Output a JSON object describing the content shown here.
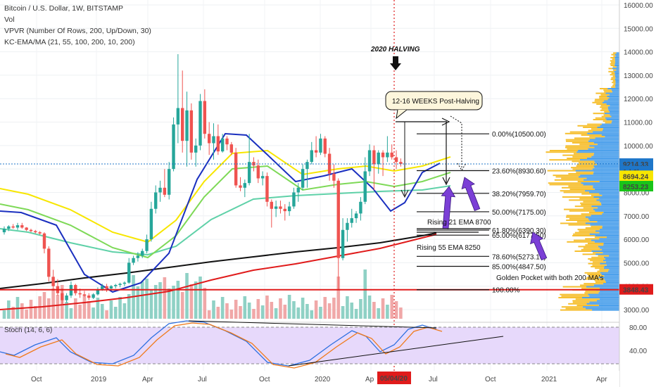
{
  "header": {
    "title": "Bitcoin / U.S. Dollar, 1W, BITSTAMP",
    "vol": "Vol",
    "vpvr": "VPVR (Number Of Rows, 200, Up/Down, 30)",
    "kc": "KC-EMA/MA (21, 55, 100, 200, 10, 200)"
  },
  "chart_data": {
    "type": "candlestick",
    "title": "Bitcoin / U.S. Dollar, 1W, BITSTAMP",
    "ylim": [
      2700,
      16200
    ],
    "y_ticks": [
      "16000.00",
      "15000.00",
      "14000.00",
      "13000.00",
      "12000.00",
      "11000.00",
      "10000.00",
      "9000.00",
      "8000.00",
      "7000.00",
      "6000.00",
      "5000.00",
      "4000.00",
      "3000.00"
    ],
    "x_ticks": [
      "Oct",
      "2019",
      "Apr",
      "Jul",
      "Oct",
      "2020",
      "Ap",
      "Jul",
      "Oct",
      "2021",
      "Apr"
    ],
    "date_badge": "05/04/20",
    "price_labels": [
      {
        "text": "9214.33",
        "value": 9214.33,
        "color": "#1f77c9"
      },
      {
        "text": "1d 6h",
        "value": 8890,
        "color": "#1f77c9"
      },
      {
        "text": "8694.24",
        "value": 8694.24,
        "color": "#f7e600"
      },
      {
        "text": "8253.23",
        "value": 8253.23,
        "color": "#19c419"
      },
      {
        "text": "3848.43",
        "value": 3848.43,
        "color": "#e01b1b"
      }
    ],
    "fib_levels": [
      {
        "label": "0.00%(10500.00)",
        "value": 10500
      },
      {
        "label": "23.60%(8930.60)",
        "value": 8930.6
      },
      {
        "label": "38.20%(7959.70)",
        "value": 7959.7
      },
      {
        "label": "50.00%(7175.00)",
        "value": 7175
      },
      {
        "label": "61.80%(6390.30)",
        "value": 6390.3
      },
      {
        "label": "65.00%(6177.50)",
        "value": 6177.5
      },
      {
        "label": "78.60%(5273.10)",
        "value": 5273.1
      },
      {
        "label": "85.00%(4847.50)",
        "value": 4847.5
      },
      {
        "label": "100.00%",
        "value": 3848.43
      }
    ],
    "annotations": {
      "halving": "2020 HALVING",
      "callout": "12-16 WEEKS Post-Halving",
      "ema21": "Rising 21 EMA 8700",
      "ema55": "Rising 55 EMA 8250",
      "golden": "Golden Pocket with both 200 MA's"
    },
    "candles": [
      [
        6300,
        6550,
        6200,
        6450
      ],
      [
        6450,
        6600,
        6350,
        6550
      ],
      [
        6550,
        6650,
        6450,
        6500
      ],
      [
        6500,
        6700,
        6400,
        6600
      ],
      [
        6600,
        6700,
        6450,
        6500
      ],
      [
        6500,
        6520,
        6350,
        6400
      ],
      [
        6400,
        6450,
        6300,
        6350
      ],
      [
        6350,
        6400,
        6250,
        6300
      ],
      [
        6300,
        6350,
        6200,
        6250
      ],
      [
        6250,
        6300,
        5400,
        5600
      ],
      [
        5600,
        5700,
        4200,
        4400
      ],
      [
        4400,
        4700,
        3800,
        4000
      ],
      [
        4000,
        4300,
        3600,
        3700
      ],
      [
        3700,
        3900,
        3200,
        3400
      ],
      [
        3400,
        3700,
        3300,
        3600
      ],
      [
        3600,
        4200,
        3500,
        4050
      ],
      [
        4050,
        4100,
        3600,
        3700
      ],
      [
        3700,
        3900,
        3500,
        3650
      ],
      [
        3650,
        3800,
        3550,
        3600
      ],
      [
        3600,
        3700,
        3400,
        3500
      ],
      [
        3500,
        3700,
        3450,
        3650
      ],
      [
        3650,
        3950,
        3600,
        3850
      ],
      [
        3850,
        4100,
        3800,
        4000
      ],
      [
        4000,
        4100,
        3750,
        3900
      ],
      [
        3900,
        4050,
        3850,
        4000
      ],
      [
        4000,
        4100,
        3900,
        4050
      ],
      [
        4050,
        4150,
        3950,
        4100
      ],
      [
        4100,
        4200,
        4000,
        4150
      ],
      [
        4150,
        5200,
        4100,
        5000
      ],
      [
        5000,
        5300,
        4900,
        5200
      ],
      [
        5200,
        5450,
        5050,
        5300
      ],
      [
        5300,
        5600,
        5200,
        5500
      ],
      [
        5500,
        6200,
        5400,
        6000
      ],
      [
        6000,
        7600,
        5900,
        7300
      ],
      [
        7300,
        8300,
        7100,
        8000
      ],
      [
        8000,
        8500,
        7600,
        8200
      ],
      [
        8200,
        9000,
        7800,
        7900
      ],
      [
        7900,
        9300,
        7700,
        9000
      ],
      [
        9000,
        11200,
        8900,
        10900
      ],
      [
        10900,
        13900,
        10100,
        11600
      ],
      [
        11600,
        13200,
        9700,
        10200
      ],
      [
        10200,
        12300,
        9100,
        11500
      ],
      [
        11500,
        11800,
        9400,
        9700
      ],
      [
        9700,
        10300,
        9100,
        10000
      ],
      [
        10000,
        12200,
        9800,
        11900
      ],
      [
        11900,
        12400,
        10300,
        10500
      ],
      [
        10500,
        11000,
        9600,
        10100
      ],
      [
        10100,
        10950,
        9400,
        10400
      ],
      [
        10400,
        10900,
        9600,
        9750
      ],
      [
        9750,
        10500,
        9700,
        10300
      ],
      [
        10300,
        10400,
        9800,
        10050
      ],
      [
        10050,
        10150,
        9600,
        9700
      ],
      [
        9700,
        9900,
        8200,
        8300
      ],
      [
        8300,
        8650,
        8050,
        8200
      ],
      [
        8200,
        8550,
        7800,
        8400
      ],
      [
        8400,
        10500,
        8300,
        9300
      ],
      [
        9300,
        9500,
        8900,
        9150
      ],
      [
        9150,
        9400,
        8400,
        8600
      ],
      [
        8600,
        8900,
        8300,
        8700
      ],
      [
        8700,
        8850,
        7400,
        7600
      ],
      [
        7600,
        7700,
        6500,
        7300
      ],
      [
        7300,
        7650,
        6950,
        7400
      ],
      [
        7400,
        7650,
        7100,
        7300
      ],
      [
        7300,
        7500,
        6800,
        7200
      ],
      [
        7200,
        7600,
        7000,
        7400
      ],
      [
        7400,
        8200,
        7300,
        8000
      ],
      [
        8000,
        8400,
        7600,
        8200
      ],
      [
        8200,
        9200,
        8100,
        9000
      ],
      [
        9000,
        9400,
        8200,
        9300
      ],
      [
        9300,
        10150,
        9200,
        9800
      ],
      [
        9800,
        10400,
        9500,
        9700
      ],
      [
        9700,
        10500,
        9600,
        10300
      ],
      [
        10300,
        10400,
        9500,
        9650
      ],
      [
        9650,
        9900,
        8500,
        8800
      ],
      [
        8800,
        9200,
        8200,
        8500
      ],
      [
        8500,
        8600,
        3850,
        5200
      ],
      [
        5200,
        6900,
        5100,
        6400
      ],
      [
        6400,
        6900,
        5900,
        6700
      ],
      [
        6700,
        7300,
        6500,
        6900
      ],
      [
        6900,
        7200,
        6700,
        7100
      ],
      [
        7100,
        7800,
        6800,
        7600
      ],
      [
        7600,
        9500,
        7500,
        8900
      ],
      [
        8900,
        10050,
        8700,
        9800
      ],
      [
        9800,
        10000,
        8100,
        9200
      ],
      [
        9200,
        9800,
        8800,
        9700
      ],
      [
        9700,
        9800,
        8700,
        9500
      ],
      [
        9500,
        10400,
        9300,
        9700
      ],
      [
        9700,
        10050,
        9400,
        9500
      ],
      [
        9500,
        9800,
        9000,
        9300
      ],
      [
        9300,
        9450,
        9100,
        9214
      ]
    ]
  }
}
